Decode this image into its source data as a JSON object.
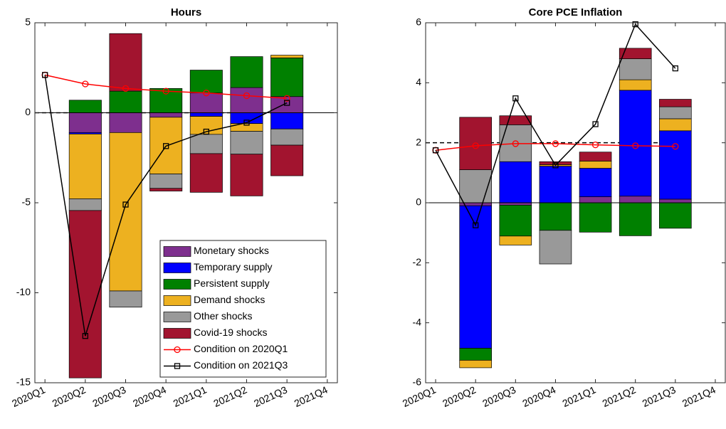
{
  "chart_data": [
    {
      "type": "bar",
      "stacked": true,
      "title": "Hours",
      "categories": [
        "2020Q1",
        "2020Q2",
        "2020Q3",
        "2020Q4",
        "2021Q1",
        "2021Q2",
        "2021Q3",
        "2021Q4"
      ],
      "ylim": [
        -15,
        5
      ],
      "yticks": [
        -15,
        -10,
        -5,
        0,
        5
      ],
      "legend": "lower right",
      "series": [
        {
          "name": "Monetary shocks",
          "color": "#7e2f8e",
          "values": [
            0,
            -1.1,
            -1.1,
            -0.25,
            1.1,
            1.4,
            0.9,
            0
          ]
        },
        {
          "name": "Temporary supply",
          "color": "#0000ff",
          "values": [
            0,
            -0.08,
            0,
            0,
            -0.2,
            -0.6,
            -0.9,
            0
          ]
        },
        {
          "name": "Persistent supply",
          "color": "#008000",
          "values": [
            0,
            0.7,
            1.2,
            1.35,
            1.27,
            1.72,
            2.15,
            0
          ]
        },
        {
          "name": "Demand shocks",
          "color": "#edb120",
          "values": [
            0,
            -3.6,
            -8.8,
            -3.15,
            -1.0,
            -0.43,
            0.15,
            0
          ]
        },
        {
          "name": "Other shocks",
          "color": "#999999",
          "values": [
            0,
            -0.65,
            -0.9,
            -0.8,
            -1.07,
            -1.27,
            -0.9,
            0
          ]
        },
        {
          "name": "Covid-19 shocks",
          "color": "#a2142f",
          "values": [
            0,
            -9.3,
            3.2,
            -0.15,
            -2.15,
            -2.32,
            -1.7,
            0
          ]
        }
      ],
      "lines": [
        {
          "name": "Condition on 2020Q1",
          "color": "#ff0000",
          "marker": "circle",
          "values": [
            2.1,
            1.6,
            1.35,
            1.2,
            1.1,
            0.95,
            0.8,
            null
          ]
        },
        {
          "name": "Condition on 2021Q3",
          "color": "#000000",
          "marker": "square",
          "values": [
            2.1,
            -12.4,
            -5.1,
            -1.85,
            -1.05,
            -0.55,
            0.55,
            null
          ]
        }
      ],
      "reference_lines": [
        {
          "value": 0,
          "style": "dashed"
        },
        {
          "value": 0,
          "style": "solid"
        }
      ]
    },
    {
      "type": "bar",
      "stacked": true,
      "title": "Core PCE Inflation",
      "categories": [
        "2020Q1",
        "2020Q2",
        "2020Q3",
        "2020Q4",
        "2021Q1",
        "2021Q2",
        "2021Q3",
        "2021Q4"
      ],
      "ylim": [
        -6,
        6
      ],
      "yticks": [
        -6,
        -4,
        -2,
        0,
        2,
        4,
        6
      ],
      "series": [
        {
          "color": "#7e2f8e",
          "values": [
            0,
            -0.1,
            -0.08,
            0,
            0.2,
            0.22,
            0.12,
            0
          ]
        },
        {
          "color": "#0000ff",
          "values": [
            0,
            -4.75,
            1.37,
            1.22,
            0.95,
            3.53,
            2.28,
            0
          ]
        },
        {
          "color": "#008000",
          "values": [
            0,
            -0.4,
            -1.03,
            -0.92,
            -0.98,
            -1.1,
            -0.85,
            0
          ]
        },
        {
          "color": "#edb120",
          "values": [
            0,
            -0.25,
            -0.3,
            0.05,
            0.24,
            0.35,
            0.4,
            0
          ]
        },
        {
          "color": "#999999",
          "values": [
            0,
            1.1,
            1.23,
            -1.12,
            0,
            0.7,
            0.4,
            0
          ]
        },
        {
          "color": "#a2142f",
          "values": [
            0,
            1.75,
            0.3,
            0.1,
            0.3,
            0.35,
            0.25,
            0
          ]
        }
      ],
      "lines": [
        {
          "color": "#ff0000",
          "marker": "circle",
          "values": [
            1.75,
            1.9,
            1.97,
            1.97,
            1.93,
            1.9,
            1.88,
            null
          ]
        },
        {
          "color": "#000000",
          "marker": "square",
          "values": [
            1.75,
            -0.75,
            3.48,
            1.25,
            2.62,
            5.95,
            4.48,
            null
          ]
        }
      ],
      "reference_lines": [
        {
          "value": 2,
          "style": "dashed"
        },
        {
          "value": 0,
          "style": "solid"
        }
      ]
    }
  ]
}
